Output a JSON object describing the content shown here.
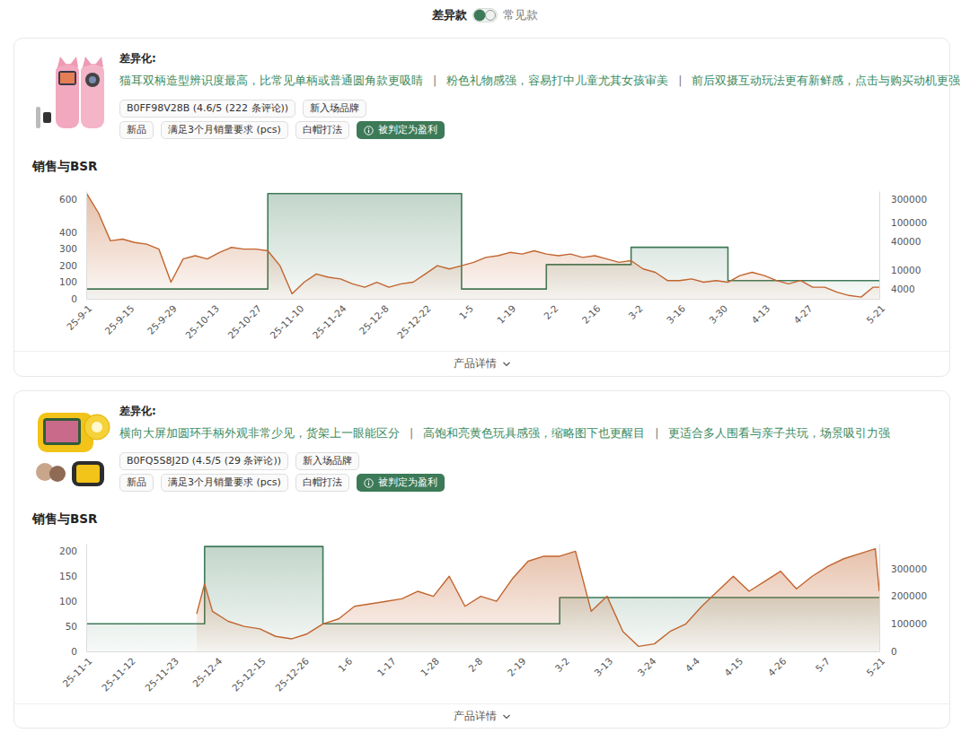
{
  "header": {
    "selected": "差异款",
    "other": "常见款"
  },
  "products": [
    {
      "diff_label": "差异化:",
      "differentiation": [
        "猫耳双柄造型辨识度最高，比常见单柄或普通圆角款更吸睛",
        "粉色礼物感强，容易打中儿童尤其女孩审美",
        "前后双摄互动玩法更有新鲜感，点击与购买动机更强"
      ],
      "separator": "|",
      "tag_rows": [
        [
          "B0FF98V28B (4.6/5 (222 条评论))",
          "新入场品牌"
        ],
        [
          "新品",
          "满足3个月销量要求 (pcs)",
          "白帽打法"
        ]
      ],
      "badge": "被判定为盈利",
      "details_label": "产品详情"
    },
    {
      "diff_label": "差异化:",
      "differentiation": [
        "横向大屏加圆环手柄外观非常少见，货架上一眼能区分",
        "高饱和亮黄色玩具感强，缩略图下也更醒目",
        "更适合多人围看与亲子共玩，场景吸引力强"
      ],
      "separator": "|",
      "tag_rows": [
        [
          "B0FQ5S8J2D (4.5/5 (29 条评论))",
          "新入场品牌"
        ],
        [
          "新品",
          "满足3个月销量要求 (pcs)",
          "白帽打法"
        ]
      ],
      "badge": "被判定为盈利",
      "details_label": "产品详情"
    }
  ],
  "chart_data": [
    {
      "type": "line",
      "title": "销售与BSR",
      "x": [
        "2025-09-01",
        "2025-09-05",
        "2025-09-09",
        "2025-09-13",
        "2025-09-17",
        "2025-09-21",
        "2025-09-25",
        "2025-09-29",
        "2025-10-03",
        "2025-10-07",
        "2025-10-11",
        "2025-10-15",
        "2025-10-19",
        "2025-10-23",
        "2025-10-27",
        "2025-10-31",
        "2025-11-04",
        "2025-11-08",
        "2025-11-12",
        "2025-11-16",
        "2025-11-20",
        "2025-11-24",
        "2025-11-28",
        "2025-12-02",
        "2025-12-06",
        "2025-12-10",
        "2025-12-14",
        "2025-12-18",
        "2025-12-22",
        "2025-12-26",
        "2025-12-30",
        "2026-01-03",
        "2026-01-07",
        "2026-01-11",
        "2026-01-15",
        "2026-01-19",
        "2026-01-23",
        "2026-01-27",
        "2026-01-31",
        "2026-02-04",
        "2026-02-08",
        "2026-02-12",
        "2026-02-16",
        "2026-02-20",
        "2026-02-24",
        "2026-02-28",
        "2026-03-04",
        "2026-03-08",
        "2026-03-12",
        "2026-03-16",
        "2026-03-20",
        "2026-03-24",
        "2026-03-28",
        "2026-04-01",
        "2026-04-05",
        "2026-04-09",
        "2026-04-13",
        "2026-04-17",
        "2026-04-21",
        "2026-04-25",
        "2026-04-29",
        "2026-05-03",
        "2026-05-07",
        "2026-05-11",
        "2026-05-15",
        "2026-05-19",
        "2026-05-21"
      ],
      "xlim": [
        "2025-09-01",
        "2026-05-21"
      ],
      "xticks": [
        {
          "value": "2025-09-01",
          "label": "25-9-1"
        },
        {
          "value": "2025-09-15",
          "label": "25-9-15"
        },
        {
          "value": "2025-09-29",
          "label": "25-9-29"
        },
        {
          "value": "2025-10-13",
          "label": "25-10-13"
        },
        {
          "value": "2025-10-27",
          "label": "25-10-27"
        },
        {
          "value": "2025-11-10",
          "label": "25-11-10"
        },
        {
          "value": "2025-11-24",
          "label": "25-11-24"
        },
        {
          "value": "2025-12-08",
          "label": "25-12-8"
        },
        {
          "value": "2025-12-22",
          "label": "25-12-22"
        },
        {
          "value": "2026-01-05",
          "label": "1-5"
        },
        {
          "value": "2026-01-19",
          "label": "1-19"
        },
        {
          "value": "2026-02-02",
          "label": "2-2"
        },
        {
          "value": "2026-02-16",
          "label": "2-16"
        },
        {
          "value": "2026-03-02",
          "label": "3-2"
        },
        {
          "value": "2026-03-16",
          "label": "3-16"
        },
        {
          "value": "2026-03-30",
          "label": "3-30"
        },
        {
          "value": "2026-04-13",
          "label": "4-13"
        },
        {
          "value": "2026-04-27",
          "label": "4-27"
        },
        {
          "value": "2026-05-21",
          "label": "5-21"
        }
      ],
      "ylim": [
        0,
        650
      ],
      "yticks": [
        0,
        100,
        200,
        300,
        400,
        600
      ],
      "y2lim": [
        2500,
        450000
      ],
      "y2ticks": [
        4000,
        10000,
        40000,
        100000,
        300000
      ],
      "log": "y2",
      "grid": false,
      "series": [
        {
          "type": "step",
          "axis": "y2",
          "color": "#3d7a58",
          "values": [
            4000,
            4000,
            4000,
            4000,
            4000,
            4000,
            4000,
            4000,
            4000,
            4000,
            4000,
            4000,
            4000,
            4000,
            4000,
            400000,
            400000,
            400000,
            400000,
            400000,
            400000,
            400000,
            400000,
            400000,
            400000,
            400000,
            400000,
            400000,
            400000,
            400000,
            400000,
            4000,
            4000,
            4000,
            4000,
            4000,
            4000,
            4000,
            13000,
            13000,
            13000,
            13000,
            13000,
            13000,
            13000,
            30000,
            30000,
            30000,
            30000,
            30000,
            30000,
            30000,
            30000,
            6000,
            6000,
            6000,
            6000,
            6000,
            6000,
            6000,
            6000,
            6000,
            6000,
            6000,
            6000,
            6000,
            6000
          ]
        },
        {
          "type": "area",
          "color": "#c2652f",
          "values": [
            640,
            520,
            350,
            360,
            340,
            330,
            300,
            100,
            240,
            260,
            240,
            280,
            310,
            300,
            300,
            290,
            200,
            30,
            100,
            150,
            130,
            120,
            90,
            70,
            100,
            70,
            90,
            100,
            150,
            200,
            180,
            200,
            220,
            250,
            260,
            280,
            270,
            290,
            270,
            260,
            270,
            250,
            260,
            240,
            220,
            230,
            180,
            160,
            110,
            110,
            120,
            100,
            110,
            100,
            140,
            160,
            140,
            110,
            90,
            110,
            70,
            70,
            40,
            20,
            10,
            70,
            70
          ]
        }
      ]
    },
    {
      "type": "line",
      "title": "销售与BSR",
      "x": [
        "2025-11-01",
        "2025-11-05",
        "2025-11-09",
        "2025-11-13",
        "2025-11-17",
        "2025-11-21",
        "2025-11-25",
        "2025-11-29",
        "2025-12-01",
        "2025-12-03",
        "2025-12-07",
        "2025-12-11",
        "2025-12-15",
        "2025-12-19",
        "2025-12-23",
        "2025-12-27",
        "2025-12-31",
        "2026-01-04",
        "2026-01-08",
        "2026-01-12",
        "2026-01-16",
        "2026-01-20",
        "2026-01-24",
        "2026-01-28",
        "2026-02-01",
        "2026-02-05",
        "2026-02-09",
        "2026-02-13",
        "2026-02-17",
        "2026-02-21",
        "2026-02-25",
        "2026-03-01",
        "2026-03-05",
        "2026-03-09",
        "2026-03-13",
        "2026-03-17",
        "2026-03-21",
        "2026-03-25",
        "2026-03-29",
        "2026-04-02",
        "2026-04-06",
        "2026-04-10",
        "2026-04-14",
        "2026-04-18",
        "2026-04-22",
        "2026-04-26",
        "2026-04-30",
        "2026-05-04",
        "2026-05-08",
        "2026-05-12",
        "2026-05-16",
        "2026-05-20",
        "2026-05-21"
      ],
      "xlim": [
        "2025-11-01",
        "2026-05-21"
      ],
      "xticks": [
        {
          "value": "2025-11-01",
          "label": "25-11-1"
        },
        {
          "value": "2025-11-12",
          "label": "25-11-12"
        },
        {
          "value": "2025-11-23",
          "label": "25-11-23"
        },
        {
          "value": "2025-12-04",
          "label": "25-12-4"
        },
        {
          "value": "2025-12-15",
          "label": "25-12-15"
        },
        {
          "value": "2025-12-26",
          "label": "25-12-26"
        },
        {
          "value": "2026-01-06",
          "label": "1-6"
        },
        {
          "value": "2026-01-17",
          "label": "1-17"
        },
        {
          "value": "2026-01-28",
          "label": "1-28"
        },
        {
          "value": "2026-02-08",
          "label": "2-8"
        },
        {
          "value": "2026-02-19",
          "label": "2-19"
        },
        {
          "value": "2026-03-02",
          "label": "3-2"
        },
        {
          "value": "2026-03-13",
          "label": "3-13"
        },
        {
          "value": "2026-03-24",
          "label": "3-24"
        },
        {
          "value": "2026-04-04",
          "label": "4-4"
        },
        {
          "value": "2026-04-15",
          "label": "4-15"
        },
        {
          "value": "2026-04-26",
          "label": "4-26"
        },
        {
          "value": "2026-05-07",
          "label": "5-7"
        },
        {
          "value": "2026-05-21",
          "label": "5-21"
        }
      ],
      "ylim": [
        0,
        215
      ],
      "yticks": [
        0,
        50,
        100,
        150,
        200
      ],
      "y2lim": [
        0,
        390000
      ],
      "y2ticks": [
        0,
        100000,
        200000,
        300000
      ],
      "grid": false,
      "series": [
        {
          "type": "step",
          "axis": "y2",
          "color": "#3d7a58",
          "values": [
            100000,
            100000,
            100000,
            100000,
            100000,
            100000,
            100000,
            100000,
            380000,
            380000,
            380000,
            380000,
            380000,
            380000,
            380000,
            380000,
            100000,
            100000,
            100000,
            100000,
            100000,
            100000,
            100000,
            100000,
            100000,
            100000,
            100000,
            100000,
            100000,
            100000,
            100000,
            195000,
            195000,
            195000,
            195000,
            195000,
            195000,
            195000,
            195000,
            195000,
            195000,
            195000,
            195000,
            195000,
            195000,
            195000,
            195000,
            195000,
            195000,
            195000,
            195000,
            195000,
            195000
          ]
        },
        {
          "type": "area",
          "color": "#c2652f",
          "values": [
            null,
            null,
            null,
            null,
            null,
            null,
            null,
            75,
            135,
            80,
            60,
            50,
            45,
            30,
            25,
            35,
            55,
            65,
            90,
            95,
            100,
            105,
            120,
            110,
            150,
            90,
            110,
            100,
            145,
            180,
            190,
            190,
            200,
            80,
            110,
            40,
            10,
            15,
            40,
            55,
            90,
            120,
            150,
            120,
            140,
            160,
            125,
            150,
            170,
            185,
            195,
            205,
            120
          ]
        }
      ]
    }
  ]
}
